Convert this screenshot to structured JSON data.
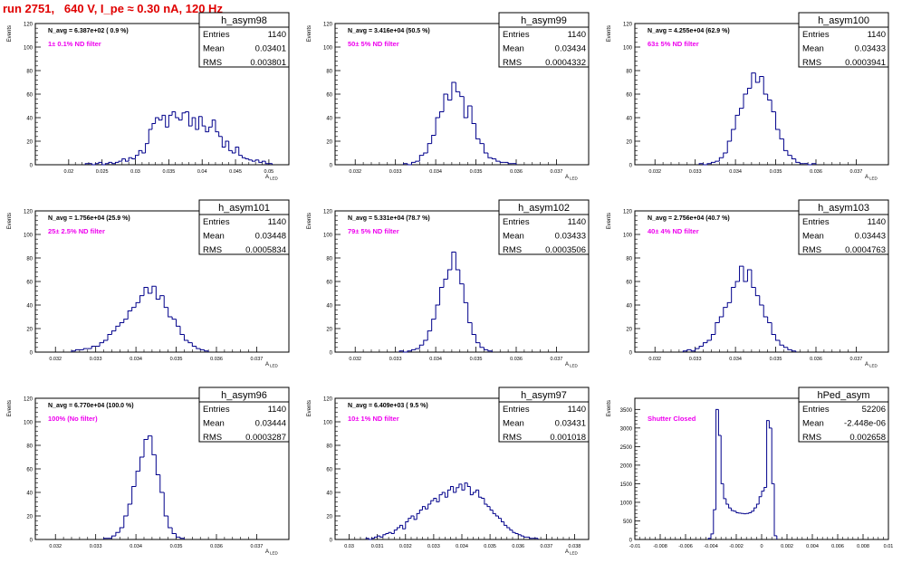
{
  "header": {
    "title": "run 2751,   640 V, I_pe ≈ 0.30 nA, 120 Hz"
  },
  "colors": {
    "title": "#e00000",
    "histogram": "#00008b",
    "annotation": "#ee00ee",
    "frame": "#000000"
  },
  "stat_labels": {
    "entries": "Entries",
    "mean": "Mean",
    "rms": "RMS"
  },
  "chart_data": [
    {
      "type": "bar",
      "name": "h_asym98",
      "navg": "N_avg = 6.387e+02 ( 0.9 %)",
      "note": "1± 0.1% ND filter",
      "stats": {
        "entries": "1140",
        "mean": "0.03401",
        "rms": "0.003801"
      },
      "ylabel": "Events",
      "xlabel": "A_LED",
      "xlim": [
        0.015,
        0.053
      ],
      "ylim": [
        0,
        120
      ],
      "xticks": [
        0.02,
        0.025,
        0.03,
        0.035,
        0.04,
        0.045,
        0.05
      ],
      "xtick_labels": [
        "0.02",
        "0.025",
        "0.03",
        "0.035",
        "0.04",
        "0.045",
        "0.05"
      ],
      "yticks": [
        0,
        20,
        40,
        60,
        80,
        100,
        120
      ],
      "x0": 0.0225,
      "bin_width": 0.0005,
      "values": [
        1,
        1,
        0,
        1,
        2,
        0,
        1,
        2,
        1,
        2,
        3,
        5,
        3,
        6,
        5,
        8,
        12,
        10,
        18,
        30,
        35,
        40,
        38,
        42,
        32,
        42,
        45,
        40,
        38,
        44,
        45,
        33,
        40,
        30,
        41,
        33,
        28,
        32,
        38,
        28,
        24,
        15,
        20,
        12,
        10,
        15,
        8,
        6,
        5,
        4,
        3,
        4,
        2,
        3,
        1,
        1
      ]
    },
    {
      "type": "bar",
      "name": "h_asym99",
      "navg": "N_avg = 3.416e+04 (50.5 %)",
      "note": "50± 5% ND filter",
      "stats": {
        "entries": "1140",
        "mean": "0.03434",
        "rms": "0.0004332"
      },
      "ylabel": "Events",
      "xlabel": "A_LED",
      "xlim": [
        0.0315,
        0.0378
      ],
      "ylim": [
        0,
        120
      ],
      "xticks": [
        0.032,
        0.033,
        0.034,
        0.035,
        0.036,
        0.037
      ],
      "xtick_labels": [
        "0.032",
        "0.033",
        "0.034",
        "0.035",
        "0.036",
        "0.037"
      ],
      "yticks": [
        0,
        20,
        40,
        60,
        80,
        100,
        120
      ],
      "x0": 0.0332,
      "bin_width": 0.0001,
      "values": [
        1,
        0,
        2,
        3,
        8,
        10,
        18,
        25,
        40,
        45,
        60,
        55,
        70,
        62,
        58,
        40,
        50,
        35,
        22,
        18,
        10,
        6,
        5,
        3,
        2,
        2,
        1,
        1
      ]
    },
    {
      "type": "bar",
      "name": "h_asym100",
      "navg": "N_avg = 4.255e+04 (62.9 %)",
      "note": "63± 5% ND filter",
      "stats": {
        "entries": "1140",
        "mean": "0.03433",
        "rms": "0.0003941"
      },
      "ylabel": "Events",
      "xlabel": "A_LED",
      "xlim": [
        0.0315,
        0.0378
      ],
      "ylim": [
        0,
        120
      ],
      "xticks": [
        0.032,
        0.033,
        0.034,
        0.035,
        0.036,
        0.037
      ],
      "xtick_labels": [
        "0.032",
        "0.033",
        "0.034",
        "0.035",
        "0.036",
        "0.037"
      ],
      "yticks": [
        0,
        20,
        40,
        60,
        80,
        100,
        120
      ],
      "x0": 0.0331,
      "bin_width": 0.0001,
      "values": [
        1,
        0,
        1,
        2,
        3,
        6,
        10,
        20,
        30,
        42,
        48,
        60,
        65,
        78,
        70,
        75,
        60,
        55,
        45,
        30,
        22,
        12,
        8,
        5,
        2,
        1,
        1,
        0,
        1
      ]
    },
    {
      "type": "bar",
      "name": "h_asym101",
      "navg": "N_avg = 1.756e+04 (25.9 %)",
      "note": "25± 2.5% ND filter",
      "stats": {
        "entries": "1140",
        "mean": "0.03448",
        "rms": "0.0005834"
      },
      "ylabel": "Events",
      "xlabel": "A_LED",
      "xlim": [
        0.0315,
        0.0378
      ],
      "ylim": [
        0,
        120
      ],
      "xticks": [
        0.032,
        0.033,
        0.034,
        0.035,
        0.036,
        0.037
      ],
      "xtick_labels": [
        "0.032",
        "0.033",
        "0.034",
        "0.035",
        "0.036",
        "0.037"
      ],
      "yticks": [
        0,
        20,
        40,
        60,
        80,
        100,
        120
      ],
      "x0": 0.0324,
      "bin_width": 0.0001,
      "values": [
        1,
        2,
        2,
        3,
        3,
        5,
        5,
        8,
        10,
        15,
        18,
        22,
        25,
        28,
        35,
        38,
        42,
        48,
        55,
        50,
        56,
        45,
        48,
        38,
        30,
        28,
        22,
        15,
        10,
        8,
        5,
        3,
        2,
        1
      ]
    },
    {
      "type": "bar",
      "name": "h_asym102",
      "navg": "N_avg = 5.331e+04 (78.7 %)",
      "note": "79± 5% ND filter",
      "stats": {
        "entries": "1140",
        "mean": "0.03433",
        "rms": "0.0003506"
      },
      "ylabel": "Events",
      "xlabel": "A_LED",
      "xlim": [
        0.0315,
        0.0378
      ],
      "ylim": [
        0,
        120
      ],
      "xticks": [
        0.032,
        0.033,
        0.034,
        0.035,
        0.036,
        0.037
      ],
      "xtick_labels": [
        "0.032",
        "0.033",
        "0.034",
        "0.035",
        "0.036",
        "0.037"
      ],
      "yticks": [
        0,
        20,
        40,
        60,
        80,
        100,
        120
      ],
      "x0": 0.0331,
      "bin_width": 0.0001,
      "values": [
        1,
        0,
        1,
        2,
        3,
        6,
        10,
        18,
        28,
        40,
        55,
        62,
        70,
        85,
        70,
        58,
        42,
        25,
        15,
        8,
        4,
        2,
        1
      ]
    },
    {
      "type": "bar",
      "name": "h_asym103",
      "navg": "N_avg = 2.756e+04 (40.7 %)",
      "note": "40± 4% ND filter",
      "stats": {
        "entries": "1140",
        "mean": "0.03443",
        "rms": "0.0004763"
      },
      "ylabel": "Events",
      "xlabel": "A_LED",
      "xlim": [
        0.0315,
        0.0378
      ],
      "ylim": [
        0,
        120
      ],
      "xticks": [
        0.032,
        0.033,
        0.034,
        0.035,
        0.036,
        0.037
      ],
      "xtick_labels": [
        "0.032",
        "0.033",
        "0.034",
        "0.035",
        "0.036",
        "0.037"
      ],
      "yticks": [
        0,
        20,
        40,
        60,
        80,
        100,
        120
      ],
      "x0": 0.0327,
      "bin_width": 0.0001,
      "values": [
        1,
        2,
        1,
        3,
        5,
        8,
        10,
        15,
        25,
        30,
        38,
        42,
        55,
        60,
        73,
        60,
        70,
        55,
        48,
        40,
        30,
        25,
        15,
        10,
        6,
        4,
        2,
        1
      ]
    },
    {
      "type": "bar",
      "name": "h_asym96",
      "navg": "N_avg = 6.770e+04 (100.0 %)",
      "note": "100% (No filter)",
      "stats": {
        "entries": "1140",
        "mean": "0.03444",
        "rms": "0.0003287"
      },
      "ylabel": "Events",
      "xlabel": "A_LED",
      "xlim": [
        0.0315,
        0.0378
      ],
      "ylim": [
        0,
        120
      ],
      "xticks": [
        0.032,
        0.033,
        0.034,
        0.035,
        0.036,
        0.037
      ],
      "xtick_labels": [
        "0.032",
        "0.033",
        "0.034",
        "0.035",
        "0.036",
        "0.037"
      ],
      "yticks": [
        0,
        20,
        40,
        60,
        80,
        100,
        120
      ],
      "x0": 0.0332,
      "bin_width": 0.0001,
      "values": [
        1,
        1,
        3,
        6,
        10,
        20,
        30,
        45,
        58,
        70,
        85,
        88,
        72,
        55,
        40,
        20,
        10,
        5,
        2,
        1
      ]
    },
    {
      "type": "bar",
      "name": "h_asym97",
      "navg": "N_avg = 6.409e+03 ( 9.5 %)",
      "note": "10± 1% ND filter",
      "stats": {
        "entries": "1140",
        "mean": "0.03431",
        "rms": "0.001018"
      },
      "ylabel": "Events",
      "xlabel": "A_LED",
      "xlim": [
        0.0295,
        0.0385
      ],
      "ylim": [
        0,
        120
      ],
      "xticks": [
        0.03,
        0.031,
        0.032,
        0.033,
        0.034,
        0.035,
        0.036,
        0.037,
        0.038
      ],
      "xtick_labels": [
        "0.03",
        "0.031",
        "0.032",
        "0.033",
        "0.034",
        "0.035",
        "0.036",
        "0.037",
        "0.038"
      ],
      "yticks": [
        0,
        20,
        40,
        60,
        80,
        100,
        120
      ],
      "x0": 0.0306,
      "bin_width": 0.0001,
      "values": [
        1,
        0,
        1,
        2,
        3,
        2,
        4,
        5,
        6,
        5,
        8,
        10,
        12,
        9,
        15,
        18,
        20,
        17,
        22,
        25,
        28,
        26,
        30,
        33,
        35,
        32,
        38,
        40,
        36,
        42,
        45,
        40,
        44,
        47,
        42,
        48,
        45,
        38,
        40,
        42,
        36,
        35,
        30,
        28,
        25,
        22,
        20,
        18,
        15,
        12,
        10,
        8,
        6,
        5,
        4,
        3,
        2,
        2,
        1,
        1,
        1
      ]
    },
    {
      "type": "bar",
      "name": "hPed_asym",
      "navg": "",
      "note": "Shutter Closed",
      "stats": {
        "entries": "52206",
        "mean": "-2.448e-06",
        "rms": "0.002658"
      },
      "ylabel": "Events",
      "xlabel": "",
      "xlim": [
        -0.01,
        0.01
      ],
      "ylim": [
        0,
        3800
      ],
      "xticks": [
        -0.01,
        -0.008,
        -0.006,
        -0.004,
        -0.002,
        0,
        0.002,
        0.004,
        0.006,
        0.008,
        0.01
      ],
      "xtick_labels": [
        "-0.01",
        "-0.008",
        "-0.006",
        "-0.004",
        "-0.002",
        "0",
        "0.002",
        "0.004",
        "0.006",
        "0.008",
        "0.01"
      ],
      "yticks": [
        0,
        500,
        1000,
        1500,
        2000,
        2500,
        3000,
        3500
      ],
      "x0": -0.0042,
      "bin_width": 0.0002,
      "values": [
        30,
        150,
        800,
        3500,
        2800,
        1500,
        1100,
        950,
        850,
        780,
        760,
        720,
        710,
        700,
        690,
        700,
        720,
        760,
        850,
        950,
        1150,
        1300,
        1400,
        3200,
        3000,
        1500,
        100
      ]
    }
  ]
}
